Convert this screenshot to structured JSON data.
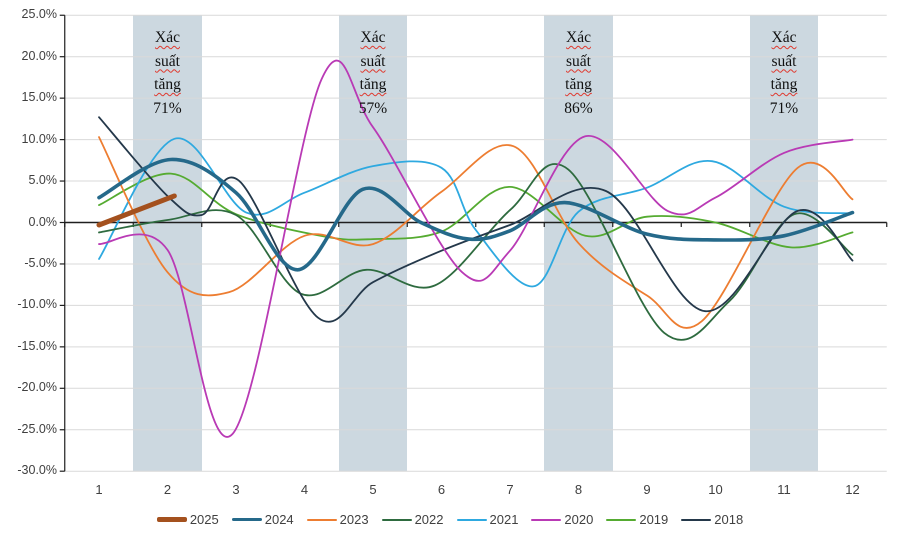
{
  "chart_data": {
    "type": "line",
    "title": "",
    "y_axis": {
      "min": -30,
      "max": 25,
      "step": 5,
      "labels": [
        "25.0%",
        "20.0%",
        "15.0%",
        "10.0%",
        "5.0%",
        "0.0%",
        "-5.0%",
        "-10.0%",
        "-15.0%",
        "-20.0%",
        "-25.0%",
        "-30.0%"
      ]
    },
    "x_axis": {
      "labels": [
        "1",
        "2",
        "3",
        "4",
        "5",
        "6",
        "7",
        "8",
        "9",
        "10",
        "11",
        "12"
      ]
    },
    "grid": true,
    "legend_position": "bottom",
    "bands": [
      {
        "start": 1.5,
        "end": 2.5,
        "text_lines": [
          "Xác",
          "suất",
          "tăng"
        ],
        "probability": "71%"
      },
      {
        "start": 4.5,
        "end": 5.5,
        "text_lines": [
          "Xác",
          "suất",
          "tăng"
        ],
        "probability": "57%"
      },
      {
        "start": 7.5,
        "end": 8.5,
        "text_lines": [
          "Xác",
          "suất",
          "tăng"
        ],
        "probability": "86%"
      },
      {
        "start": 10.5,
        "end": 11.5,
        "text_lines": [
          "Xác",
          "suất",
          "tăng"
        ],
        "probability": "71%"
      }
    ],
    "series": [
      {
        "name": "2025",
        "color": "#a4511e",
        "width": 5,
        "points": [
          [
            1,
            -0.3
          ],
          [
            2.1,
            3.2
          ]
        ]
      },
      {
        "name": "2024",
        "color": "#25698a",
        "width": 3.6,
        "points": [
          [
            1,
            3.0
          ],
          [
            2.05,
            7.6
          ],
          [
            3,
            3.6
          ],
          [
            3.9,
            -5.7
          ],
          [
            4.85,
            4.0
          ],
          [
            5.7,
            0
          ],
          [
            6.4,
            -2.0
          ],
          [
            7,
            -1.0
          ],
          [
            7.8,
            2.4
          ],
          [
            9,
            -1.4
          ],
          [
            10,
            -2.1
          ],
          [
            11,
            -1.6
          ],
          [
            12,
            1.2
          ]
        ]
      },
      {
        "name": "2023",
        "color": "#ed7d31",
        "width": 1.8,
        "points": [
          [
            1,
            10.3
          ],
          [
            2,
            -6.0
          ],
          [
            2.9,
            -8.4
          ],
          [
            4,
            -1.6
          ],
          [
            5,
            -2.6
          ],
          [
            6,
            3.7
          ],
          [
            7.05,
            9.2
          ],
          [
            8,
            -2.5
          ],
          [
            9,
            -8.8
          ],
          [
            9.8,
            -11.9
          ],
          [
            11.2,
            6.6
          ],
          [
            12,
            2.8
          ]
        ]
      },
      {
        "name": "2022",
        "color": "#2e6b3f",
        "width": 1.8,
        "points": [
          [
            1,
            -1.2
          ],
          [
            2,
            0.3
          ],
          [
            3,
            0.9
          ],
          [
            3.95,
            -8.6
          ],
          [
            4.9,
            -5.7
          ],
          [
            5.9,
            -7.6
          ],
          [
            7,
            1.5
          ],
          [
            7.85,
            6.4
          ],
          [
            9.25,
            -13.3
          ],
          [
            10.2,
            -9.5
          ],
          [
            11.15,
            1.0
          ],
          [
            12,
            -3.9
          ]
        ]
      },
      {
        "name": "2021",
        "color": "#2ea9e0",
        "width": 1.8,
        "points": [
          [
            1,
            -4.4
          ],
          [
            2.1,
            10.1
          ],
          [
            3.15,
            1.2
          ],
          [
            4,
            3.6
          ],
          [
            5,
            6.8
          ],
          [
            6,
            6.6
          ],
          [
            6.5,
            -0.9
          ],
          [
            7.35,
            -7.7
          ],
          [
            8,
            1.3
          ],
          [
            9,
            4.2
          ],
          [
            9.95,
            7.4
          ],
          [
            11,
            1.9
          ],
          [
            12,
            1.1
          ]
        ]
      },
      {
        "name": "2020",
        "color": "#b93ab5",
        "width": 1.8,
        "points": [
          [
            1,
            -2.6
          ],
          [
            2,
            -3.3
          ],
          [
            2.95,
            -25.5
          ],
          [
            4.25,
            17.3
          ],
          [
            5,
            11.5
          ],
          [
            6.3,
            -6.0
          ],
          [
            7,
            -3.4
          ],
          [
            8.1,
            10.4
          ],
          [
            9.3,
            1.4
          ],
          [
            10,
            3.0
          ],
          [
            11,
            8.4
          ],
          [
            12,
            10.0
          ]
        ]
      },
      {
        "name": "2019",
        "color": "#55ab31",
        "width": 1.8,
        "points": [
          [
            1,
            2.1
          ],
          [
            2.05,
            5.9
          ],
          [
            3,
            1.0
          ],
          [
            4.3,
            -1.7
          ],
          [
            5,
            -2.0
          ],
          [
            6,
            -1.1
          ],
          [
            7,
            4.3
          ],
          [
            8.1,
            -1.6
          ],
          [
            9,
            0.7
          ],
          [
            10,
            0.0
          ],
          [
            11.1,
            -3.0
          ],
          [
            12,
            -1.2
          ]
        ]
      },
      {
        "name": "2018",
        "color": "#24384a",
        "width": 1.8,
        "points": [
          [
            1,
            12.7
          ],
          [
            2,
            3.2
          ],
          [
            2.5,
            0.9
          ],
          [
            3.05,
            5.0
          ],
          [
            4.2,
            -11.5
          ],
          [
            5,
            -7.2
          ],
          [
            6,
            -3.4
          ],
          [
            7,
            -0.3
          ],
          [
            8.4,
            3.8
          ],
          [
            9.85,
            -10.7
          ],
          [
            11.2,
            1.4
          ],
          [
            12,
            -4.6
          ]
        ]
      }
    ],
    "legend": [
      "2025",
      "2024",
      "2023",
      "2022",
      "2021",
      "2020",
      "2019",
      "2018"
    ],
    "colors": {
      "grid": "#d9d9d9",
      "axis": "#1f1f1f",
      "band": "#ccd8e0",
      "label": "#3f3f3f",
      "misspell_underline": "#e0392e"
    }
  }
}
